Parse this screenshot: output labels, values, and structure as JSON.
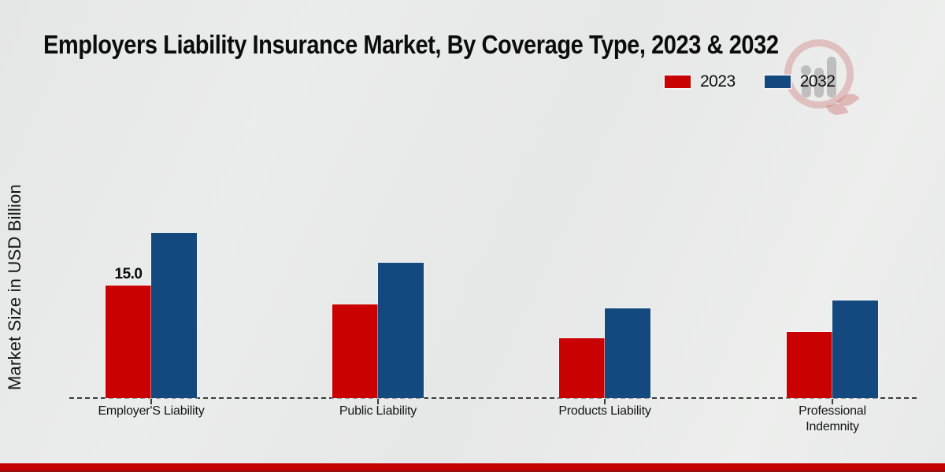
{
  "title": "Employers Liability Insurance Market, By Coverage Type, 2023 & 2032",
  "y_axis": {
    "label": "Market Size in USD Billion"
  },
  "legend": {
    "items": [
      {
        "label": "2023",
        "color": "#c90101"
      },
      {
        "label": "2032",
        "color": "#14497f"
      }
    ]
  },
  "watermark_icon": "bar-chart-circle-logo",
  "colors": {
    "series_2023": "#c90101",
    "series_2032": "#14497f",
    "footer_stripe": "#c40303"
  },
  "chart_data": {
    "type": "bar",
    "title": "Employers Liability Insurance Market, By Coverage Type, 2023 & 2032",
    "ylabel": "Market Size in USD Billion",
    "categories": [
      "Employer'S Liability",
      "Public Liability",
      "Products Liability",
      "Professional Indemnity"
    ],
    "series": [
      {
        "name": "2023",
        "color": "#c90101",
        "values": [
          15.0,
          12.5,
          8.0,
          8.8
        ]
      },
      {
        "name": "2032",
        "color": "#14497f",
        "values": [
          22.0,
          18.0,
          12.0,
          13.0
        ]
      }
    ],
    "bar_labels": [
      {
        "series_index": 0,
        "category_index": 0,
        "text": "15.0"
      }
    ],
    "ylim": [
      0,
      24
    ],
    "grid": false,
    "legend_position": "top-right",
    "baseline_style": "dashed",
    "yticks_visible": false
  }
}
